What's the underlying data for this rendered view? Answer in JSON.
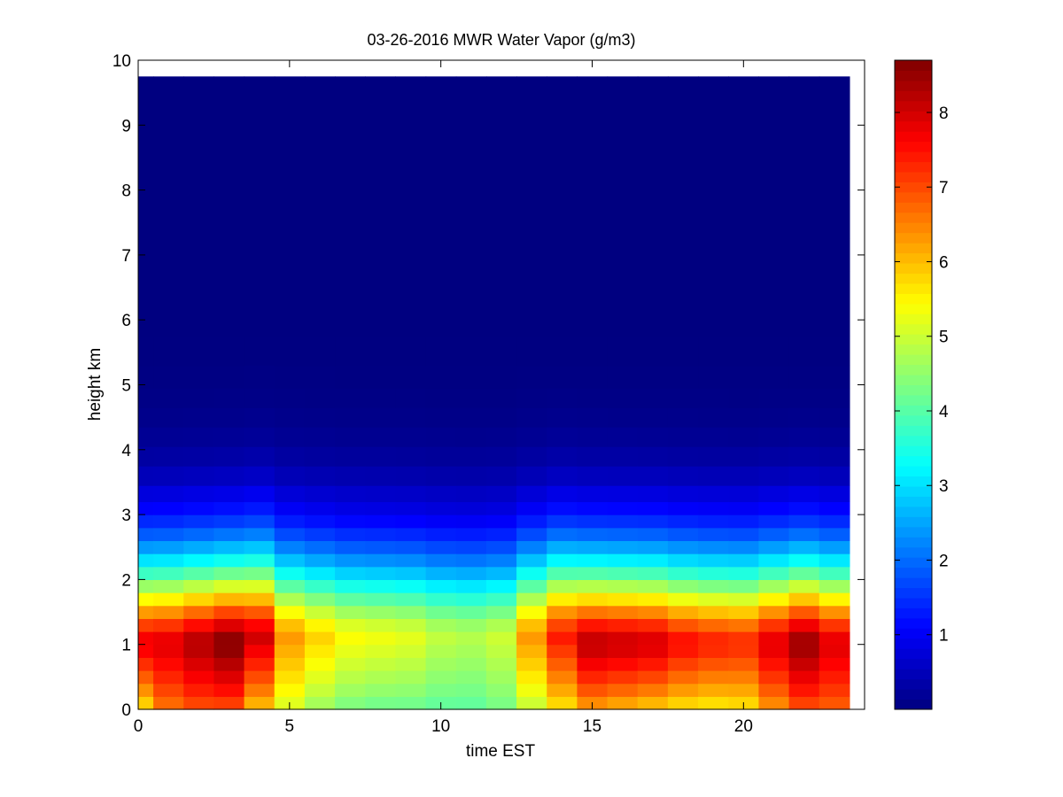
{
  "chart_data": {
    "type": "heatmap",
    "title": "03-26-2016 MWR Water Vapor (g/m3)",
    "xlabel": "time EST",
    "ylabel": "height km",
    "xlim": [
      0,
      24
    ],
    "ylim": [
      0,
      10
    ],
    "x_ticks": [
      0,
      5,
      10,
      15,
      20
    ],
    "y_ticks": [
      0,
      1,
      2,
      3,
      4,
      5,
      6,
      7,
      8,
      9,
      10
    ],
    "colorbar": {
      "range": [
        0,
        8.7
      ],
      "ticks": [
        1,
        2,
        3,
        4,
        5,
        6,
        7,
        8
      ],
      "colormap": "jet"
    },
    "grid": false,
    "time_hours": [
      0,
      1,
      2,
      3,
      4,
      5,
      6,
      7,
      8,
      9,
      10,
      11,
      12,
      13,
      14,
      15,
      16,
      17,
      18,
      19,
      20,
      21,
      22,
      23
    ],
    "height_km": [
      0.1,
      0.3,
      0.5,
      0.7,
      0.9,
      1.1,
      1.3,
      1.5,
      1.7,
      1.9,
      2.1,
      2.3,
      2.5,
      2.7,
      2.9,
      3.1,
      3.3,
      3.6,
      3.9,
      4.2,
      4.5,
      4.8,
      5.1,
      5.5,
      6.0,
      6.5,
      7.0,
      7.5,
      8.0,
      8.5,
      9.0,
      9.5
    ],
    "profiles": [
      {
        "near_surface": 5.5,
        "peak": 7.8,
        "peak_height_km": 1.0
      },
      {
        "near_surface": 6.5,
        "peak": 7.9,
        "peak_height_km": 1.0
      },
      {
        "near_surface": 6.8,
        "peak": 8.3,
        "peak_height_km": 1.0
      },
      {
        "near_surface": 6.8,
        "peak": 8.7,
        "peak_height_km": 1.0
      },
      {
        "near_surface": 5.8,
        "peak": 8.0,
        "peak_height_km": 1.1
      },
      {
        "near_surface": 5.0,
        "peak": 6.3,
        "peak_height_km": 1.1
      },
      {
        "near_surface": 4.5,
        "peak": 5.8,
        "peak_height_km": 1.1
      },
      {
        "near_surface": 4.2,
        "peak": 5.4,
        "peak_height_km": 1.1
      },
      {
        "near_surface": 4.1,
        "peak": 5.3,
        "peak_height_km": 1.1
      },
      {
        "near_surface": 4.1,
        "peak": 5.2,
        "peak_height_km": 1.1
      },
      {
        "near_surface": 4.0,
        "peak": 4.9,
        "peak_height_km": 1.1
      },
      {
        "near_surface": 4.0,
        "peak": 4.8,
        "peak_height_km": 1.1
      },
      {
        "near_surface": 4.2,
        "peak": 5.0,
        "peak_height_km": 1.1
      },
      {
        "near_surface": 4.8,
        "peak": 6.3,
        "peak_height_km": 1.1
      },
      {
        "near_surface": 5.5,
        "peak": 7.4,
        "peak_height_km": 1.1
      },
      {
        "near_surface": 6.1,
        "peak": 8.2,
        "peak_height_km": 1.0
      },
      {
        "near_surface": 5.9,
        "peak": 8.1,
        "peak_height_km": 1.0
      },
      {
        "near_surface": 5.7,
        "peak": 8.0,
        "peak_height_km": 1.0
      },
      {
        "near_surface": 5.5,
        "peak": 7.6,
        "peak_height_km": 1.0
      },
      {
        "near_surface": 5.4,
        "peak": 7.4,
        "peak_height_km": 1.0
      },
      {
        "near_surface": 5.5,
        "peak": 7.3,
        "peak_height_km": 1.0
      },
      {
        "near_surface": 6.2,
        "peak": 7.9,
        "peak_height_km": 1.0
      },
      {
        "near_surface": 6.8,
        "peak": 8.5,
        "peak_height_km": 1.0
      },
      {
        "near_surface": 6.7,
        "peak": 7.9,
        "peak_height_km": 1.0
      }
    ],
    "upper_atmosphere_value": 0.0
  }
}
